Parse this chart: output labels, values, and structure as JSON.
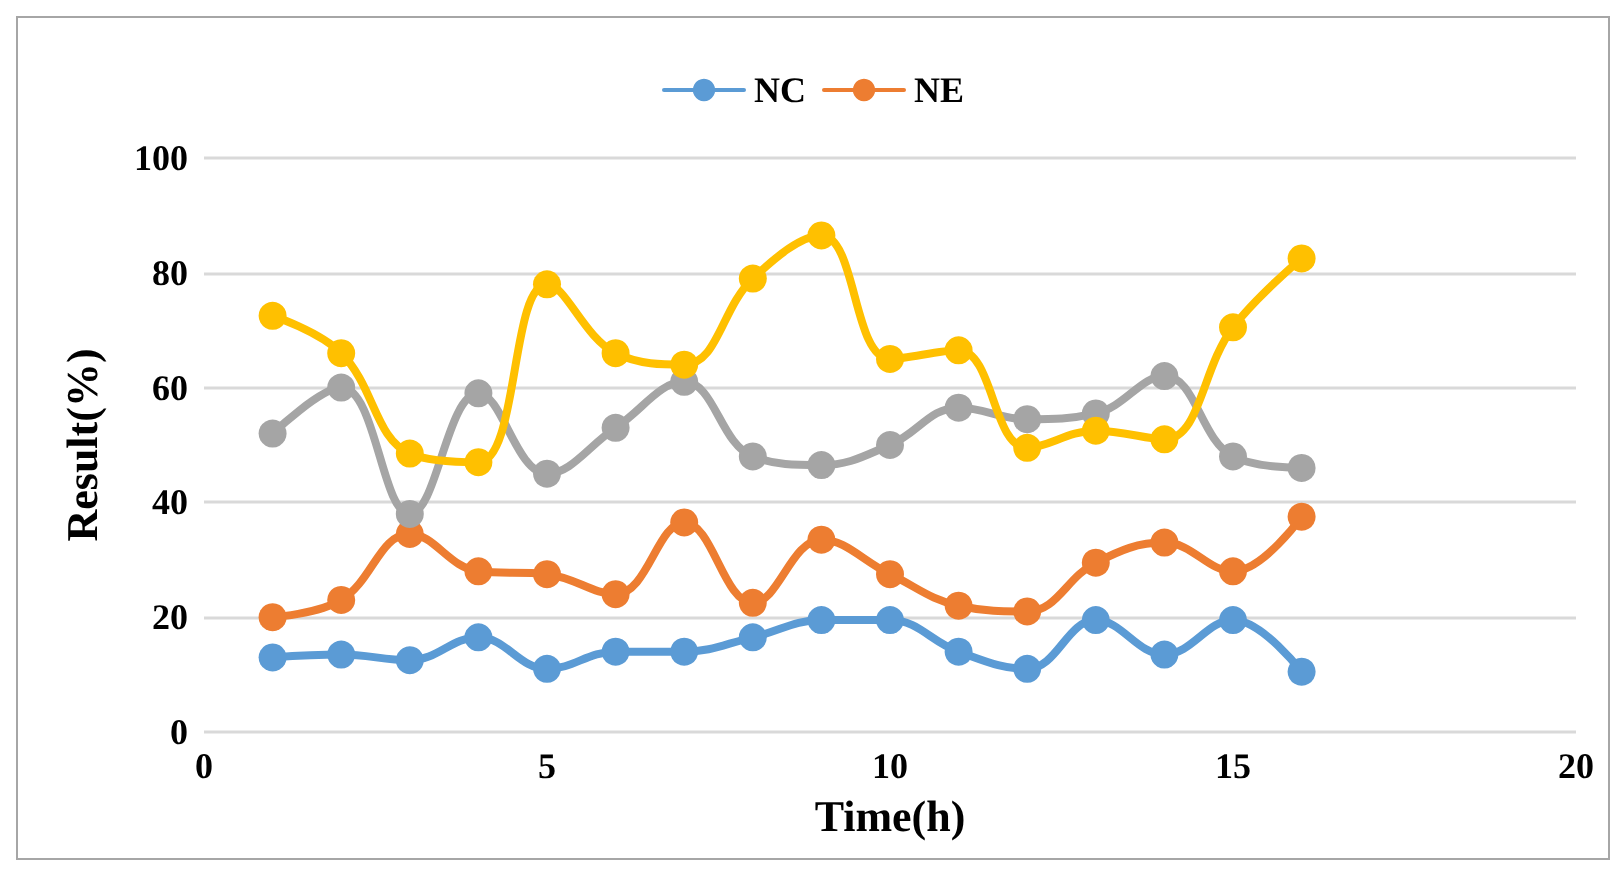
{
  "chart_data": {
    "type": "line",
    "xlabel": "Time(h)",
    "ylabel": "Result(%)",
    "x": [
      1,
      2,
      3,
      4,
      5,
      6,
      7,
      8,
      9,
      10,
      11,
      12,
      13,
      14,
      15,
      16
    ],
    "series": [
      {
        "name": "NC",
        "color": "#5b9bd5",
        "values": [
          13,
          13.5,
          12.5,
          16.5,
          11,
          14,
          14,
          16.5,
          19.5,
          19.5,
          14,
          11,
          19.5,
          13.5,
          19.5,
          10.5
        ]
      },
      {
        "name": "NE",
        "color": "#ed7d31",
        "values": [
          20,
          23,
          34.5,
          28,
          27.5,
          24,
          36.5,
          22.5,
          33.5,
          27.5,
          22,
          21,
          29.5,
          33,
          28,
          37.5
        ]
      },
      {
        "color": "#a5a5a5",
        "values": [
          52,
          60,
          38,
          59,
          45,
          53,
          61,
          48,
          46.5,
          50,
          56.5,
          54.5,
          55.5,
          62,
          48,
          46
        ]
      },
      {
        "color": "#ffc000",
        "values": [
          72.5,
          66,
          48.5,
          47,
          78,
          66,
          64,
          79,
          86.5,
          65,
          66.5,
          49.5,
          52.5,
          51,
          70.5,
          82.5
        ]
      }
    ],
    "xlim": [
      0,
      20
    ],
    "xticks": [
      0,
      5,
      10,
      15,
      20
    ],
    "ylim": [
      0,
      100
    ],
    "yticks": [
      0,
      20,
      40,
      60,
      80,
      100
    ],
    "grid": "y",
    "legend": "top",
    "marker": "circle",
    "line_style": "solid"
  }
}
